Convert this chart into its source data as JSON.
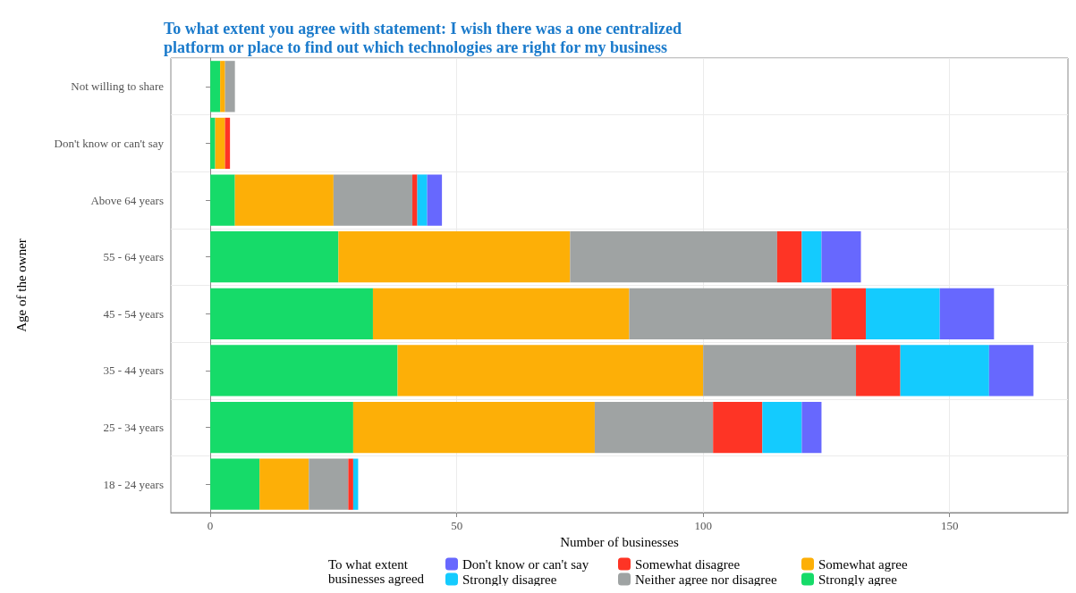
{
  "chart_data": {
    "type": "bar",
    "orientation": "horizontal",
    "stacked": true,
    "title": "To what extent you agree with statement: I wish there was a one centralized\nplatform or place to find out which technologies are right for my business",
    "xlabel": "Number of businesses",
    "ylabel": "Age of the owner",
    "legend_title": "To what extent\nbusinesses agreed",
    "categories": [
      "Not willing to share",
      "Don't know or can't say",
      "Above 64 years",
      "55 - 64 years",
      "45 - 54 years",
      "35 - 44 years",
      "25 - 34 years",
      "18 - 24 years"
    ],
    "series": [
      {
        "name": "Strongly agree",
        "color": "#16db69",
        "values": [
          2,
          1,
          5,
          26,
          33,
          38,
          29,
          10
        ]
      },
      {
        "name": "Somewhat agree",
        "color": "#fdaf07",
        "values": [
          1,
          2,
          20,
          47,
          52,
          62,
          49,
          10
        ]
      },
      {
        "name": "Neither agree nor disagree",
        "color": "#9fa3a3",
        "values": [
          2,
          null,
          16,
          42,
          41,
          31,
          24,
          8
        ]
      },
      {
        "name": "Somewhat disagree",
        "color": "#fe3425",
        "values": [
          null,
          1,
          1,
          5,
          7,
          9,
          10,
          1
        ]
      },
      {
        "name": "Strongly disagree",
        "color": "#14cbfe",
        "values": [
          null,
          null,
          2,
          4,
          15,
          18,
          8,
          1
        ]
      },
      {
        "name": "Don't know or can't say",
        "color": "#6768fe",
        "values": [
          null,
          null,
          3,
          8,
          11,
          9,
          4,
          null
        ]
      }
    ],
    "xlim": [
      -8,
      174
    ],
    "xticks": [
      0,
      50,
      100,
      150
    ],
    "grid": true,
    "legend": "bottom"
  }
}
